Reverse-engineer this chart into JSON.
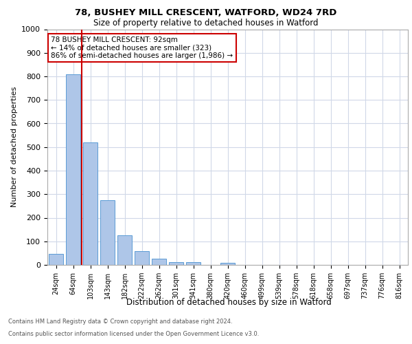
{
  "title1": "78, BUSHEY MILL CRESCENT, WATFORD, WD24 7RD",
  "title2": "Size of property relative to detached houses in Watford",
  "xlabel": "Distribution of detached houses by size in Watford",
  "ylabel": "Number of detached properties",
  "categories": [
    "24sqm",
    "64sqm",
    "103sqm",
    "143sqm",
    "182sqm",
    "222sqm",
    "262sqm",
    "301sqm",
    "341sqm",
    "380sqm",
    "420sqm",
    "460sqm",
    "499sqm",
    "539sqm",
    "578sqm",
    "618sqm",
    "658sqm",
    "697sqm",
    "737sqm",
    "776sqm",
    "816sqm"
  ],
  "values": [
    46,
    808,
    520,
    275,
    125,
    58,
    25,
    13,
    13,
    0,
    8,
    0,
    0,
    0,
    0,
    0,
    0,
    0,
    0,
    0,
    0
  ],
  "bar_color": "#aec6e8",
  "bar_edge_color": "#5b9bd5",
  "vline_x": 1.5,
  "vline_color": "#cc0000",
  "annotation_title": "78 BUSHEY MILL CRESCENT: 92sqm",
  "annotation_line1": "← 14% of detached houses are smaller (323)",
  "annotation_line2": "86% of semi-detached houses are larger (1,986) →",
  "annotation_box_color": "#cc0000",
  "ylim": [
    0,
    1000
  ],
  "yticks": [
    0,
    100,
    200,
    300,
    400,
    500,
    600,
    700,
    800,
    900,
    1000
  ],
  "footnote1": "Contains HM Land Registry data © Crown copyright and database right 2024.",
  "footnote2": "Contains public sector information licensed under the Open Government Licence v3.0.",
  "background_color": "#ffffff",
  "grid_color": "#d0d8e8"
}
